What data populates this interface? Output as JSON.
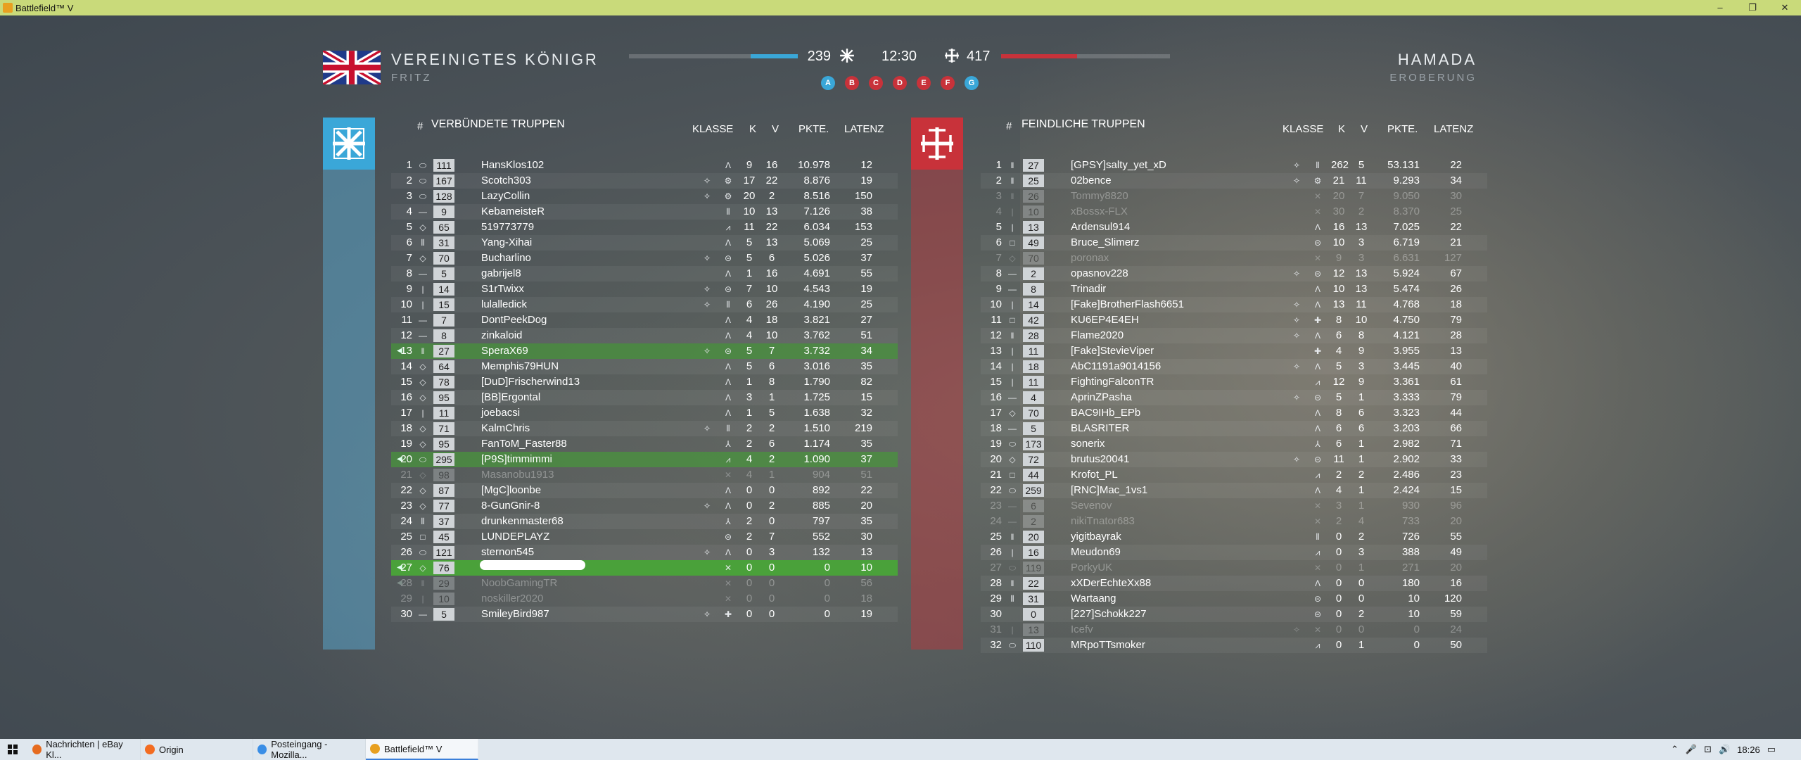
{
  "window": {
    "title": "Battlefield™ V",
    "min": "–",
    "max": "❐",
    "close": "✕"
  },
  "header": {
    "team": "VEREINIGTES KÖNIGR",
    "player": "FRITZ",
    "map": "HAMADA",
    "mode": "EROBERUNG",
    "ally_score": "239",
    "enemy_score": "417",
    "timer": "12:30",
    "ally_fraction": 0.28,
    "enemy_fraction": 0.45,
    "flags": [
      {
        "l": "A",
        "c": "#3aa7d8"
      },
      {
        "l": "B",
        "c": "#c8323a"
      },
      {
        "l": "C",
        "c": "#c8323a"
      },
      {
        "l": "D",
        "c": "#c8323a"
      },
      {
        "l": "E",
        "c": "#c8323a"
      },
      {
        "l": "F",
        "c": "#c8323a"
      },
      {
        "l": "G",
        "c": "#3aa7d8"
      }
    ]
  },
  "colors": {
    "ally": "#3aa7d8",
    "enemy": "#c8323a",
    "squad": "#4aa13a"
  },
  "ally": {
    "hash": "#",
    "title": "VERBÜNDETE TRUPPEN",
    "klasse": "KLASSE",
    "k": "K",
    "v": "V",
    "pkte": "PKTE.",
    "latenz": "LATENZ",
    "rows": [
      {
        "r": "1",
        "rk": "⬭",
        "lv": "111",
        "n": "HansKlos102",
        "sp": "",
        "cl": "Λ",
        "k": "9",
        "d": "16",
        "p": "10.978",
        "pg": "12"
      },
      {
        "r": "2",
        "rk": "⬭",
        "lv": "167",
        "n": "Scotch303",
        "sp": "✧",
        "cl": "⚙",
        "k": "17",
        "d": "22",
        "p": "8.876",
        "pg": "19"
      },
      {
        "r": "3",
        "rk": "⬭",
        "lv": "128",
        "n": "LazyCollin",
        "sp": "✧",
        "cl": "⚙",
        "k": "20",
        "d": "2",
        "p": "8.516",
        "pg": "150"
      },
      {
        "r": "4",
        "rk": "—",
        "lv": "9",
        "n": "KebameisteR",
        "sp": "",
        "cl": "⦀",
        "k": "10",
        "d": "13",
        "p": "7.126",
        "pg": "38"
      },
      {
        "r": "5",
        "rk": "◇",
        "lv": "65",
        "n": "519773779",
        "sp": "",
        "cl": "⩘",
        "k": "11",
        "d": "22",
        "p": "6.034",
        "pg": "153"
      },
      {
        "r": "6",
        "rk": "⦀",
        "lv": "31",
        "n": "Yang-Xihai",
        "sp": "",
        "cl": "Λ",
        "k": "5",
        "d": "13",
        "p": "5.069",
        "pg": "25"
      },
      {
        "r": "7",
        "rk": "◇",
        "lv": "70",
        "n": "Bucharlino",
        "sp": "✧",
        "cl": "⊝",
        "k": "5",
        "d": "6",
        "p": "5.026",
        "pg": "37"
      },
      {
        "r": "8",
        "rk": "—",
        "lv": "5",
        "n": "gabrijel8",
        "sp": "",
        "cl": "Λ",
        "k": "1",
        "d": "16",
        "p": "4.691",
        "pg": "55"
      },
      {
        "r": "9",
        "rk": "|",
        "lv": "14",
        "n": "S1rTwixx",
        "sp": "✧",
        "cl": "⊝",
        "k": "7",
        "d": "10",
        "p": "4.543",
        "pg": "19"
      },
      {
        "r": "10",
        "rk": "|",
        "lv": "15",
        "n": "lulalledick",
        "sp": "✧",
        "cl": "⦀",
        "k": "6",
        "d": "26",
        "p": "4.190",
        "pg": "25"
      },
      {
        "r": "11",
        "rk": "—",
        "lv": "7",
        "n": "DontPeekDog",
        "sp": "",
        "cl": "Λ",
        "k": "4",
        "d": "18",
        "p": "3.821",
        "pg": "27"
      },
      {
        "r": "12",
        "rk": "—",
        "lv": "8",
        "n": "zinkaloid",
        "sp": "",
        "cl": "Λ",
        "k": "4",
        "d": "10",
        "p": "3.762",
        "pg": "51"
      },
      {
        "r": "13",
        "rk": "‖",
        "lv": "27",
        "n": "SperaX69",
        "sp": "✧",
        "cl": "⊝",
        "k": "5",
        "d": "7",
        "p": "3.732",
        "pg": "34",
        "t": "sq"
      },
      {
        "r": "14",
        "rk": "◇",
        "lv": "64",
        "n": "Memphis79HUN",
        "sp": "",
        "cl": "Λ",
        "k": "5",
        "d": "6",
        "p": "3.016",
        "pg": "35"
      },
      {
        "r": "15",
        "rk": "◇",
        "lv": "78",
        "n": "[DuD]Frischerwind13",
        "sp": "",
        "cl": "Λ",
        "k": "1",
        "d": "8",
        "p": "1.790",
        "pg": "82"
      },
      {
        "r": "16",
        "rk": "◇",
        "lv": "95",
        "n": "[BB]Ergontal",
        "sp": "",
        "cl": "Λ",
        "k": "3",
        "d": "1",
        "p": "1.725",
        "pg": "15"
      },
      {
        "r": "17",
        "rk": "|",
        "lv": "11",
        "n": "joebacsi",
        "sp": "",
        "cl": "Λ",
        "k": "1",
        "d": "5",
        "p": "1.638",
        "pg": "32"
      },
      {
        "r": "18",
        "rk": "◇",
        "lv": "71",
        "n": "KalmChris",
        "sp": "✧",
        "cl": "⦀",
        "k": "2",
        "d": "2",
        "p": "1.510",
        "pg": "219"
      },
      {
        "r": "19",
        "rk": "◇",
        "lv": "95",
        "n": "FanToM_Faster88",
        "sp": "",
        "cl": "⅄",
        "k": "2",
        "d": "6",
        "p": "1.174",
        "pg": "35"
      },
      {
        "r": "20",
        "rk": "⬭",
        "lv": "295",
        "n": "[P9S]timmimmi",
        "sp": "",
        "cl": "⩘",
        "k": "4",
        "d": "2",
        "p": "1.090",
        "pg": "37",
        "t": "sq"
      },
      {
        "r": "21",
        "rk": "◇",
        "lv": "98",
        "n": "Masanobu1913",
        "sp": "",
        "cl": "✕",
        "k": "4",
        "d": "1",
        "p": "904",
        "pg": "51",
        "t": "dim"
      },
      {
        "r": "22",
        "rk": "◇",
        "lv": "87",
        "n": "[MgC]loonbe",
        "sp": "",
        "cl": "Λ",
        "k": "0",
        "d": "0",
        "p": "892",
        "pg": "22"
      },
      {
        "r": "23",
        "rk": "◇",
        "lv": "77",
        "n": "8-GunGnir-8",
        "sp": "✧",
        "cl": "Λ",
        "k": "0",
        "d": "2",
        "p": "885",
        "pg": "20"
      },
      {
        "r": "24",
        "rk": "⦀",
        "lv": "37",
        "n": "drunkenmaster68",
        "sp": "",
        "cl": "⅄",
        "k": "2",
        "d": "0",
        "p": "797",
        "pg": "35"
      },
      {
        "r": "25",
        "rk": "□",
        "lv": "45",
        "n": "LUNDEPLAYZ",
        "sp": "",
        "cl": "⊝",
        "k": "2",
        "d": "7",
        "p": "552",
        "pg": "30"
      },
      {
        "r": "26",
        "rk": "⬭",
        "lv": "121",
        "n": "sternon545",
        "sp": "✧",
        "cl": "Λ",
        "k": "0",
        "d": "3",
        "p": "132",
        "pg": "13"
      },
      {
        "r": "27",
        "rk": "◇",
        "lv": "76",
        "n": "",
        "sp": "",
        "cl": "✕",
        "k": "0",
        "d": "0",
        "p": "0",
        "pg": "10",
        "t": "me"
      },
      {
        "r": "28",
        "rk": "‖",
        "lv": "29",
        "n": "NoobGamingTR",
        "sp": "",
        "cl": "✕",
        "k": "0",
        "d": "0",
        "p": "0",
        "pg": "56",
        "t": "dim sqd"
      },
      {
        "r": "29",
        "rk": "|",
        "lv": "10",
        "n": "noskiller2020",
        "sp": "",
        "cl": "✕",
        "k": "0",
        "d": "0",
        "p": "0",
        "pg": "18",
        "t": "dim"
      },
      {
        "r": "30",
        "rk": "—",
        "lv": "5",
        "n": "SmileyBird987",
        "sp": "✧",
        "cl": "✚",
        "k": "0",
        "d": "0",
        "p": "0",
        "pg": "19"
      }
    ]
  },
  "enemy": {
    "hash": "#",
    "title": "FEINDLICHE TRUPPEN",
    "klasse": "KLASSE",
    "k": "K",
    "v": "V",
    "pkte": "PKTE.",
    "latenz": "LATENZ",
    "rows": [
      {
        "r": "1",
        "rk": "‖",
        "lv": "27",
        "n": "[GPSY]salty_yet_xD",
        "sp": "✧",
        "cl": "⦀",
        "k": "262",
        "d": "5",
        "p": "53.131",
        "pg": "22"
      },
      {
        "r": "2",
        "rk": "‖",
        "lv": "25",
        "n": "02bence",
        "sp": "✧",
        "cl": "⚙",
        "k": "21",
        "d": "11",
        "p": "9.293",
        "pg": "34"
      },
      {
        "r": "3",
        "rk": "‖",
        "lv": "26",
        "n": "Tommy8820",
        "sp": "",
        "cl": "✕",
        "k": "20",
        "d": "7",
        "p": "9.050",
        "pg": "30",
        "t": "dim"
      },
      {
        "r": "4",
        "rk": "|",
        "lv": "10",
        "n": "xBossx-FLX",
        "sp": "",
        "cl": "✕",
        "k": "30",
        "d": "2",
        "p": "8.370",
        "pg": "25",
        "t": "dim"
      },
      {
        "r": "5",
        "rk": "|",
        "lv": "13",
        "n": "Ardensul914",
        "sp": "",
        "cl": "Λ",
        "k": "16",
        "d": "13",
        "p": "7.025",
        "pg": "22"
      },
      {
        "r": "6",
        "rk": "□",
        "lv": "49",
        "n": "Bruce_Slimerz",
        "sp": "",
        "cl": "⊝",
        "k": "10",
        "d": "3",
        "p": "6.719",
        "pg": "21"
      },
      {
        "r": "7",
        "rk": "◇",
        "lv": "70",
        "n": "poronax",
        "sp": "",
        "cl": "✕",
        "k": "9",
        "d": "3",
        "p": "6.631",
        "pg": "127",
        "t": "dim"
      },
      {
        "r": "8",
        "rk": "—",
        "lv": "2",
        "n": "opasnov228",
        "sp": "✧",
        "cl": "⊝",
        "k": "12",
        "d": "13",
        "p": "5.924",
        "pg": "67"
      },
      {
        "r": "9",
        "rk": "—",
        "lv": "8",
        "n": "Trinadir",
        "sp": "",
        "cl": "Λ",
        "k": "10",
        "d": "13",
        "p": "5.474",
        "pg": "26"
      },
      {
        "r": "10",
        "rk": "|",
        "lv": "14",
        "n": "[Fake]BrotherFlash6651",
        "sp": "✧",
        "cl": "Λ",
        "k": "13",
        "d": "11",
        "p": "4.768",
        "pg": "18"
      },
      {
        "r": "11",
        "rk": "□",
        "lv": "42",
        "n": "KU6EP4E4EH",
        "sp": "✧",
        "cl": "✚",
        "k": "8",
        "d": "10",
        "p": "4.750",
        "pg": "79"
      },
      {
        "r": "12",
        "rk": "‖",
        "lv": "28",
        "n": "Flame2020",
        "sp": "✧",
        "cl": "Λ",
        "k": "6",
        "d": "8",
        "p": "4.121",
        "pg": "28"
      },
      {
        "r": "13",
        "rk": "|",
        "lv": "11",
        "n": "[Fake]StevieViper",
        "sp": "",
        "cl": "✚",
        "k": "4",
        "d": "9",
        "p": "3.955",
        "pg": "13"
      },
      {
        "r": "14",
        "rk": "|",
        "lv": "18",
        "n": "AbC1191a9014156",
        "sp": "✧",
        "cl": "Λ",
        "k": "5",
        "d": "3",
        "p": "3.445",
        "pg": "40"
      },
      {
        "r": "15",
        "rk": "|",
        "lv": "11",
        "n": "FightingFalconTR",
        "sp": "",
        "cl": "⩘",
        "k": "12",
        "d": "9",
        "p": "3.361",
        "pg": "61"
      },
      {
        "r": "16",
        "rk": "—",
        "lv": "4",
        "n": "AprinZPasha",
        "sp": "✧",
        "cl": "⊝",
        "k": "5",
        "d": "1",
        "p": "3.333",
        "pg": "79"
      },
      {
        "r": "17",
        "rk": "◇",
        "lv": "70",
        "n": "BAC9IHb_EPb",
        "sp": "",
        "cl": "Λ",
        "k": "8",
        "d": "6",
        "p": "3.323",
        "pg": "44"
      },
      {
        "r": "18",
        "rk": "—",
        "lv": "5",
        "n": "BLASRITER",
        "sp": "",
        "cl": "Λ",
        "k": "6",
        "d": "6",
        "p": "3.203",
        "pg": "66"
      },
      {
        "r": "19",
        "rk": "⬭",
        "lv": "173",
        "n": "sonerix",
        "sp": "",
        "cl": "⅄",
        "k": "6",
        "d": "1",
        "p": "2.982",
        "pg": "71"
      },
      {
        "r": "20",
        "rk": "◇",
        "lv": "72",
        "n": "brutus20041",
        "sp": "✧",
        "cl": "⊝",
        "k": "11",
        "d": "1",
        "p": "2.902",
        "pg": "33"
      },
      {
        "r": "21",
        "rk": "□",
        "lv": "44",
        "n": "Krofot_PL",
        "sp": "",
        "cl": "⩘",
        "k": "2",
        "d": "2",
        "p": "2.486",
        "pg": "23"
      },
      {
        "r": "22",
        "rk": "⬭",
        "lv": "259",
        "n": "[RNC]Mac_1vs1",
        "sp": "",
        "cl": "Λ",
        "k": "4",
        "d": "1",
        "p": "2.424",
        "pg": "15"
      },
      {
        "r": "23",
        "rk": "—",
        "lv": "6",
        "n": "Sevenov",
        "sp": "",
        "cl": "✕",
        "k": "3",
        "d": "1",
        "p": "930",
        "pg": "96",
        "t": "dim"
      },
      {
        "r": "24",
        "rk": "—",
        "lv": "2",
        "n": "nikiTnator683",
        "sp": "",
        "cl": "✕",
        "k": "2",
        "d": "4",
        "p": "733",
        "pg": "20",
        "t": "dim"
      },
      {
        "r": "25",
        "rk": "‖",
        "lv": "20",
        "n": "yigitbayrak",
        "sp": "",
        "cl": "⦀",
        "k": "0",
        "d": "2",
        "p": "726",
        "pg": "55"
      },
      {
        "r": "26",
        "rk": "|",
        "lv": "16",
        "n": "Meudon69",
        "sp": "",
        "cl": "⩘",
        "k": "0",
        "d": "3",
        "p": "388",
        "pg": "49"
      },
      {
        "r": "27",
        "rk": "⬭",
        "lv": "119",
        "n": "PorkyUK",
        "sp": "",
        "cl": "✕",
        "k": "0",
        "d": "1",
        "p": "271",
        "pg": "20",
        "t": "dim"
      },
      {
        "r": "28",
        "rk": "‖",
        "lv": "22",
        "n": "xXDerEchteXx88",
        "sp": "",
        "cl": "Λ",
        "k": "0",
        "d": "0",
        "p": "180",
        "pg": "16"
      },
      {
        "r": "29",
        "rk": "⦀",
        "lv": "31",
        "n": "Wartaang",
        "sp": "",
        "cl": "⊝",
        "k": "0",
        "d": "0",
        "p": "10",
        "pg": "120"
      },
      {
        "r": "30",
        "rk": "",
        "lv": "0",
        "n": "[227]Schokk227",
        "sp": "",
        "cl": "⊝",
        "k": "0",
        "d": "2",
        "p": "10",
        "pg": "59"
      },
      {
        "r": "31",
        "rk": "|",
        "lv": "13",
        "n": "Icefv",
        "sp": "✧",
        "cl": "✕",
        "k": "0",
        "d": "0",
        "p": "0",
        "pg": "24",
        "t": "dim"
      },
      {
        "r": "32",
        "rk": "⬭",
        "lv": "110",
        "n": "MRpoTTsmoker",
        "sp": "",
        "cl": "⩘",
        "k": "0",
        "d": "1",
        "p": "0",
        "pg": "50"
      }
    ]
  },
  "taskbar": {
    "items": [
      {
        "label": "Nachrichten | eBay Kl...",
        "c": "#e66b1f"
      },
      {
        "label": "Origin",
        "c": "#f36c21"
      },
      {
        "label": "Posteingang - Mozilla...",
        "c": "#3a8ee6"
      },
      {
        "label": "Battlefield™ V",
        "c": "#e8a020",
        "active": true
      }
    ],
    "time": "18:26"
  }
}
